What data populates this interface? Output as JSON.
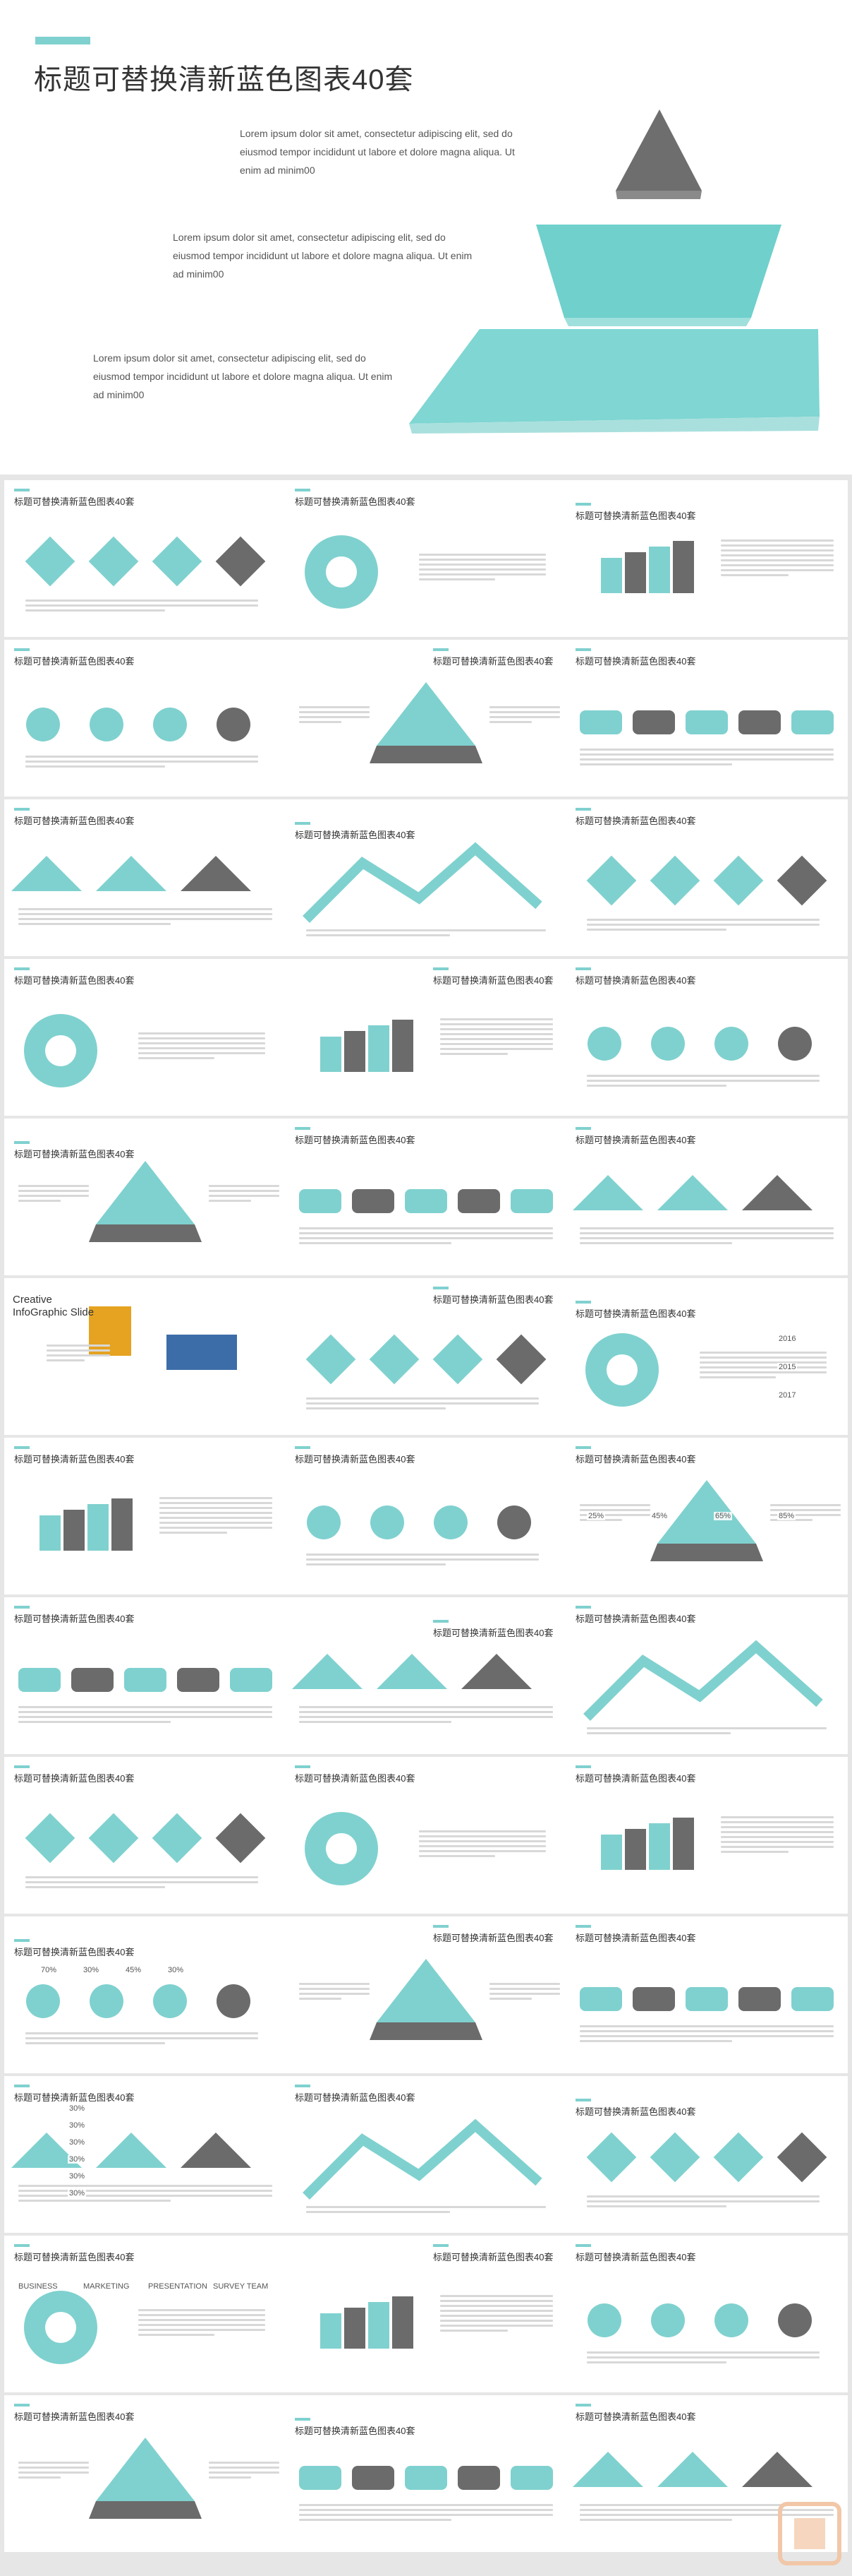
{
  "hero": {
    "title": "标题可替换清新蓝色图表40套",
    "text1": "Lorem ipsum dolor sit amet, consectetur adipiscing elit, sed do eiusmod tempor incididunt ut labore et dolore magna aliqua. Ut enim ad minim00",
    "text2": "Lorem ipsum dolor sit amet, consectetur adipiscing elit, sed do eiusmod tempor incididunt ut labore et dolore magna aliqua. Ut enim ad minim00",
    "text3": "Lorem ipsum dolor sit amet, consectetur adipiscing elit, sed do eiusmod tempor incididunt ut labore et dolore magna aliqua. Ut enim ad minim00"
  },
  "slide_title": "标题可替换清新蓝色图表40套",
  "creative": {
    "line1": "Creative",
    "line2": "InfoGraphic Slide"
  },
  "labels": {
    "years": [
      "2016",
      "2015",
      "2017"
    ],
    "percents": [
      "25%",
      "45%",
      "65%",
      "85%"
    ],
    "bars": [
      "70%",
      "30%",
      "45%",
      "30%"
    ],
    "steps": [
      "30%",
      "30%",
      "30%",
      "30%",
      "30%",
      "30%"
    ],
    "tabs": [
      "BUSINESS",
      "MARKETING",
      "PRESENTATION",
      "SURVEY TEAM"
    ]
  },
  "colors": {
    "accent": "#7fd1cf",
    "dark": "#6b6b6b",
    "light": "#a9e0de"
  }
}
